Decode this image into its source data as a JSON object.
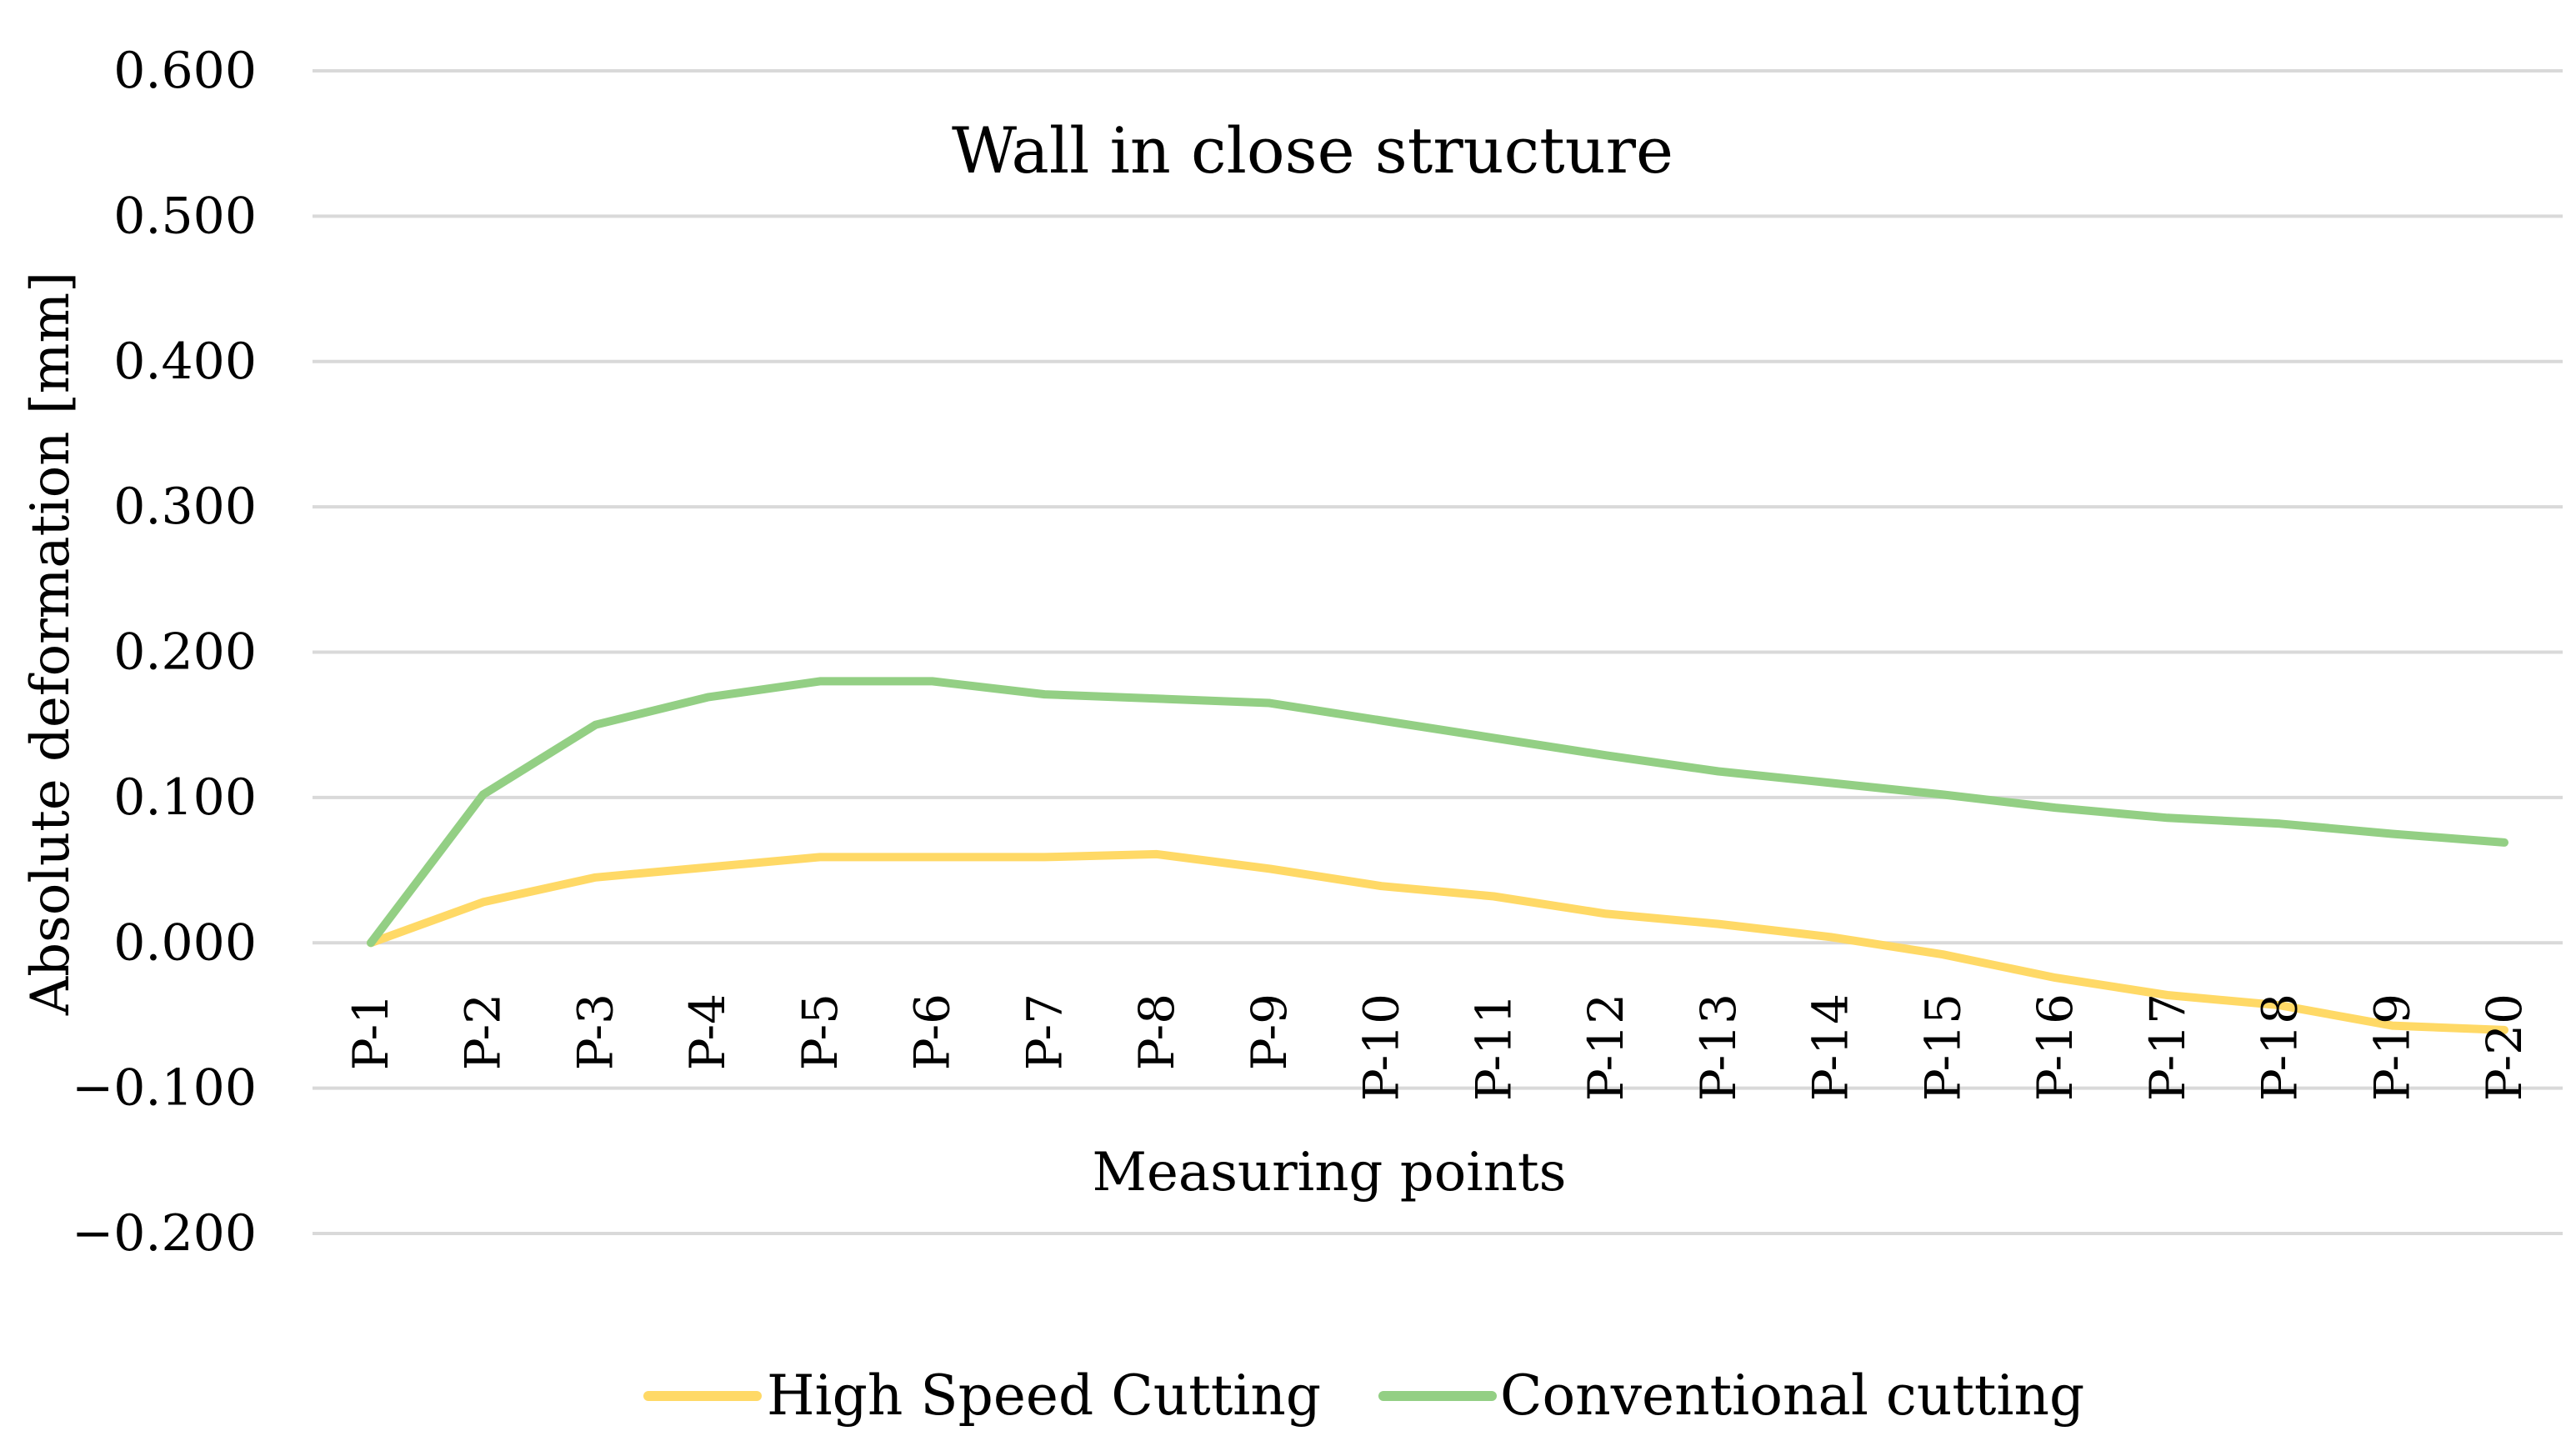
{
  "chart_data": {
    "type": "line",
    "title": "Wall in close structure",
    "xlabel": "Measuring points",
    "ylabel": "Absolute deformation [mm]",
    "ylim": [
      -0.2,
      0.6
    ],
    "yticks": [
      0.6,
      0.5,
      0.4,
      0.3,
      0.2,
      0.1,
      0.0,
      -0.1,
      -0.2
    ],
    "ytick_labels": [
      "0.600",
      "0.500",
      "0.400",
      "0.300",
      "0.200",
      "0.100",
      "0.000",
      "−0.100",
      "−0.200"
    ],
    "grid": true,
    "legend_position": "bottom",
    "categories": [
      "P-1",
      "P-2",
      "P-3",
      "P-4",
      "P-5",
      "P-6",
      "P-7",
      "P-8",
      "P-9",
      "P-10",
      "P-11",
      "P-12",
      "P-13",
      "P-14",
      "P-15",
      "P-16",
      "P-17",
      "P-18",
      "P-19",
      "P-20"
    ],
    "series": [
      {
        "name": "High Speed Cutting",
        "color": "#ffd966",
        "values": [
          0.0,
          0.028,
          0.045,
          0.052,
          0.059,
          0.059,
          0.059,
          0.061,
          0.051,
          0.039,
          0.032,
          0.02,
          0.013,
          0.004,
          -0.008,
          -0.024,
          -0.036,
          -0.043,
          -0.057,
          -0.06
        ]
      },
      {
        "name": "Conventional cutting",
        "color": "#93cf84",
        "values": [
          0.0,
          0.102,
          0.15,
          0.169,
          0.18,
          0.18,
          0.171,
          0.168,
          0.165,
          0.153,
          0.141,
          0.129,
          0.118,
          0.11,
          0.102,
          0.093,
          0.086,
          0.082,
          0.075,
          0.069
        ]
      }
    ]
  }
}
